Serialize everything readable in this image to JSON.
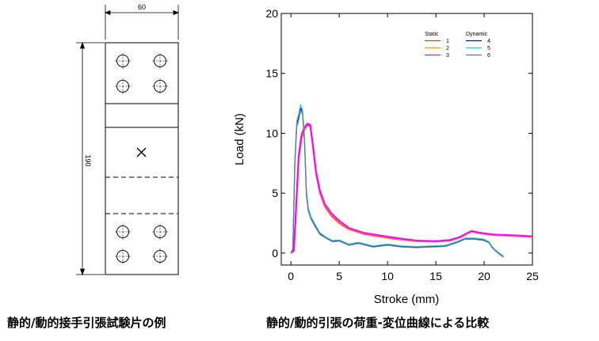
{
  "specimen": {
    "width_dim": "60",
    "height_dim": "190",
    "caption": "静的/動的接手引張試験片の例"
  },
  "caption_right": "静的/動的引張の荷重-変位曲線による比較",
  "chart_data": {
    "type": "line",
    "xlabel": "Stroke (mm)",
    "ylabel": "Load (kN)",
    "xlim": [
      -1,
      25
    ],
    "ylim": [
      -1,
      20
    ],
    "xticks": [
      "0",
      "5",
      "10",
      "15",
      "20",
      "25"
    ],
    "yticks": [
      "0",
      "5",
      "10",
      "15",
      "20"
    ],
    "grid": false,
    "legend_position": "top-right",
    "legend_groups": [
      "Static",
      "Dynamic"
    ],
    "series": [
      {
        "name": "1",
        "group": "Static",
        "color": "#ff3030",
        "x": [
          0,
          0.3,
          0.5,
          0.8,
          1.1,
          1.4,
          1.7,
          2.0,
          2.3,
          2.6,
          3.0,
          3.5,
          4.2,
          5.0,
          6.0,
          7.5,
          9.0,
          11.0,
          13.0,
          15.0,
          16.5,
          17.5,
          18.2,
          18.7,
          19.2,
          20.0,
          21.0,
          22.5,
          24.0,
          25.0
        ],
        "y": [
          0,
          0.2,
          3.0,
          7.8,
          9.6,
          10.3,
          10.7,
          10.6,
          8.7,
          6.6,
          5.0,
          3.9,
          3.1,
          2.5,
          2.0,
          1.6,
          1.4,
          1.15,
          1.0,
          0.95,
          1.05,
          1.3,
          1.6,
          1.8,
          1.7,
          1.6,
          1.5,
          1.45,
          1.4,
          1.35
        ]
      },
      {
        "name": "2",
        "group": "Static",
        "color": "#ff9933",
        "x": [
          0,
          0.3,
          0.5,
          0.8,
          1.1,
          1.4,
          1.7,
          2.0,
          2.3,
          2.6,
          3.0,
          3.5,
          4.2,
          5.0,
          6.0,
          7.5,
          9.0,
          11.0,
          13.0,
          15.0,
          16.5,
          17.5,
          18.2,
          18.7,
          19.2,
          20.0,
          21.0,
          22.5,
          24.0,
          25.0
        ],
        "y": [
          0,
          0.2,
          3.2,
          8.0,
          9.8,
          10.4,
          10.8,
          10.7,
          8.8,
          6.7,
          5.1,
          4.0,
          3.2,
          2.6,
          2.05,
          1.65,
          1.45,
          1.2,
          1.02,
          0.97,
          1.08,
          1.32,
          1.62,
          1.82,
          1.72,
          1.62,
          1.52,
          1.47,
          1.42,
          1.37
        ]
      },
      {
        "name": "3",
        "group": "Static",
        "color": "#ff00ff",
        "x": [
          0,
          0.3,
          0.5,
          0.8,
          1.1,
          1.4,
          1.7,
          2.0,
          2.3,
          2.6,
          3.0,
          3.5,
          4.2,
          5.0,
          6.0,
          7.5,
          9.0,
          11.0,
          13.0,
          15.0,
          16.5,
          17.5,
          18.2,
          18.7,
          19.2,
          20.0,
          21.0,
          22.5,
          24.0,
          25.0
        ],
        "y": [
          0,
          0.2,
          3.4,
          8.1,
          9.9,
          10.5,
          10.8,
          10.7,
          8.9,
          6.8,
          5.2,
          4.1,
          3.3,
          2.7,
          2.1,
          1.7,
          1.5,
          1.25,
          1.05,
          1.0,
          1.1,
          1.35,
          1.65,
          1.85,
          1.75,
          1.65,
          1.55,
          1.5,
          1.45,
          1.4
        ]
      },
      {
        "name": "4",
        "group": "Dynamic",
        "color": "#0000dd",
        "x": [
          0,
          0.2,
          0.4,
          0.6,
          0.8,
          1.0,
          1.2,
          1.4,
          1.6,
          1.8,
          2.1,
          2.5,
          3.0,
          3.6,
          4.3,
          5.0,
          6.0,
          7.0,
          8.5,
          10.0,
          11.5,
          13.0,
          14.5,
          16.0,
          17.3,
          18.0,
          19.0,
          20.0,
          20.5,
          20.8,
          21.2,
          21.5,
          22.0
        ],
        "y": [
          0,
          0.3,
          7.5,
          10.8,
          11.3,
          12.1,
          11.8,
          9.5,
          5.0,
          3.6,
          2.9,
          2.3,
          1.6,
          1.3,
          1.0,
          1.05,
          0.7,
          0.85,
          0.55,
          0.7,
          0.55,
          0.5,
          0.55,
          0.6,
          0.95,
          1.2,
          1.2,
          1.1,
          0.9,
          0.5,
          0.2,
          0.0,
          -0.3
        ]
      },
      {
        "name": "5",
        "group": "Dynamic",
        "color": "#33cccc",
        "x": [
          0,
          0.2,
          0.4,
          0.6,
          0.8,
          1.0,
          1.2,
          1.4,
          1.6,
          1.8,
          2.1,
          2.5,
          3.0,
          3.6,
          4.3,
          5.0,
          6.0,
          7.0,
          8.5,
          10.0,
          11.5,
          13.0,
          14.5,
          16.0,
          17.3,
          18.0,
          19.0,
          20.0,
          20.5,
          20.8,
          21.2,
          21.5,
          22.0
        ],
        "y": [
          0,
          0.4,
          7.8,
          11.0,
          11.6,
          12.4,
          12.0,
          9.8,
          5.3,
          3.8,
          3.0,
          2.4,
          1.7,
          1.35,
          1.05,
          1.1,
          0.75,
          0.9,
          0.6,
          0.75,
          0.6,
          0.55,
          0.6,
          0.65,
          1.0,
          1.25,
          1.25,
          1.15,
          0.95,
          0.55,
          0.25,
          0.05,
          -0.25
        ]
      },
      {
        "name": "6",
        "group": "Dynamic",
        "color": "#667788",
        "x": [
          0,
          0.2,
          0.4,
          0.6,
          0.8,
          1.0,
          1.2,
          1.4,
          1.6,
          1.8,
          2.1,
          2.5,
          3.0,
          3.6,
          4.3,
          5.0,
          6.0,
          7.0,
          8.5,
          10.0,
          11.5,
          13.0,
          14.5,
          16.0,
          17.3,
          18.0,
          19.0,
          20.0,
          20.5,
          20.8,
          21.2,
          21.5,
          22.0
        ],
        "y": [
          0,
          0.3,
          7.2,
          10.5,
          11.1,
          11.9,
          11.6,
          9.3,
          4.8,
          3.5,
          2.8,
          2.2,
          1.55,
          1.25,
          0.95,
          1.0,
          0.65,
          0.8,
          0.5,
          0.65,
          0.5,
          0.45,
          0.5,
          0.55,
          0.9,
          1.15,
          1.15,
          1.05,
          0.85,
          0.45,
          0.15,
          -0.05,
          -0.35
        ]
      }
    ]
  }
}
